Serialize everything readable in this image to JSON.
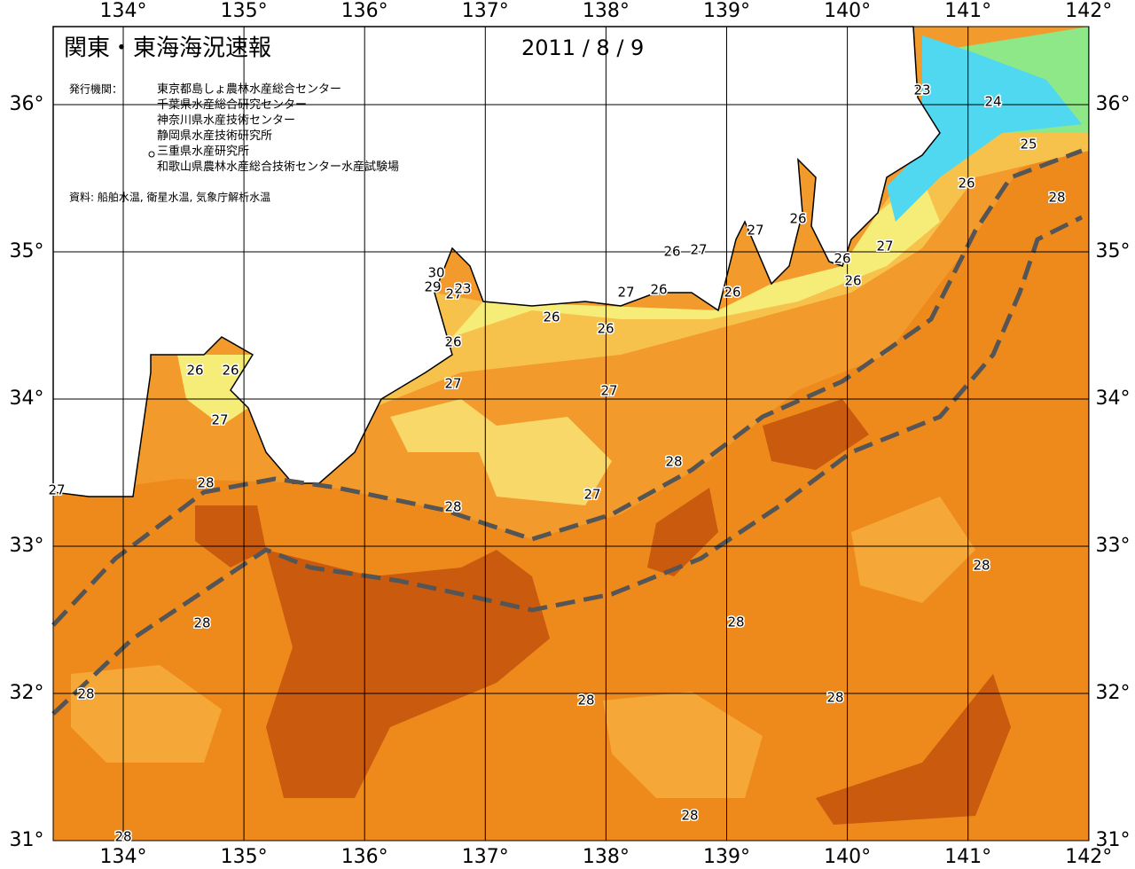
{
  "header": {
    "title": "関東・東海海況速報",
    "date": "2011 / 8 / 9",
    "issuer_label": "発行機関：",
    "issuers": [
      "東京都島しょ農林水産総合センター",
      "千葉県水産総合研究センター",
      "神奈川県水産技術センター",
      "静岡県水産技術研究所",
      "三重県水産研究所",
      "和歌山県農林水産総合技術センター水産試験場"
    ],
    "source": "資料: 船舶水温, 衛星水温, 気象庁解析水温"
  },
  "map": {
    "longitudes": [
      {
        "value": 134,
        "label": "134°"
      },
      {
        "value": 135,
        "label": "135°"
      },
      {
        "value": 136,
        "label": "136°"
      },
      {
        "value": 137,
        "label": "137°"
      },
      {
        "value": 138,
        "label": "138°"
      },
      {
        "value": 139,
        "label": "139°"
      },
      {
        "value": 140,
        "label": "140°"
      },
      {
        "value": 141,
        "label": "141°"
      },
      {
        "value": 142,
        "label": "142°"
      }
    ],
    "latitudes": [
      {
        "value": 36,
        "label": "36°"
      },
      {
        "value": 35,
        "label": "35°"
      },
      {
        "value": 34,
        "label": "34°"
      },
      {
        "value": 33,
        "label": "33°"
      },
      {
        "value": 32,
        "label": "32°"
      },
      {
        "value": 31,
        "label": "31°"
      }
    ],
    "contour_labels": [
      "23",
      "24",
      "25",
      "26",
      "28",
      "27",
      "26",
      "26",
      "26",
      "27",
      "26",
      "27",
      "27",
      "26",
      "26",
      "26",
      "26",
      "30",
      "29",
      "27",
      "23",
      "26",
      "27",
      "27",
      "26",
      "26",
      "27",
      "28",
      "27",
      "28",
      "28",
      "27",
      "28",
      "28",
      "28",
      "28",
      "28",
      "28",
      "28",
      "28"
    ]
  }
}
